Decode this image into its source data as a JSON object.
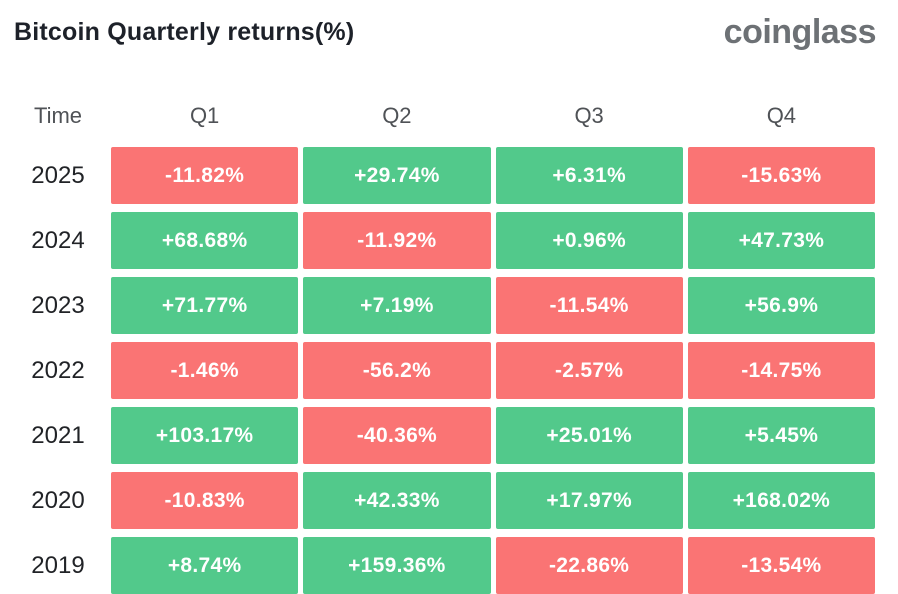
{
  "page": {
    "title": "Bitcoin Quarterly returns(%)",
    "brand": "coinglass"
  },
  "colors": {
    "positive": "#52c98b",
    "negative": "#fa7474",
    "cell_text": "#ffffff",
    "title_text": "#1d2129",
    "brand_text": "#6d7175",
    "header_text": "#4f5256",
    "year_text": "#212327",
    "background": "#ffffff"
  },
  "table": {
    "columns": [
      "Time",
      "Q1",
      "Q2",
      "Q3",
      "Q4"
    ],
    "rows": [
      {
        "year": "2025",
        "cells": [
          {
            "label": "-11.82%",
            "sign": "negative"
          },
          {
            "label": "+29.74%",
            "sign": "positive"
          },
          {
            "label": "+6.31%",
            "sign": "positive"
          },
          {
            "label": "-15.63%",
            "sign": "negative"
          }
        ]
      },
      {
        "year": "2024",
        "cells": [
          {
            "label": "+68.68%",
            "sign": "positive"
          },
          {
            "label": "-11.92%",
            "sign": "negative"
          },
          {
            "label": "+0.96%",
            "sign": "positive"
          },
          {
            "label": "+47.73%",
            "sign": "positive"
          }
        ]
      },
      {
        "year": "2023",
        "cells": [
          {
            "label": "+71.77%",
            "sign": "positive"
          },
          {
            "label": "+7.19%",
            "sign": "positive"
          },
          {
            "label": "-11.54%",
            "sign": "negative"
          },
          {
            "label": "+56.9%",
            "sign": "positive"
          }
        ]
      },
      {
        "year": "2022",
        "cells": [
          {
            "label": "-1.46%",
            "sign": "negative"
          },
          {
            "label": "-56.2%",
            "sign": "negative"
          },
          {
            "label": "-2.57%",
            "sign": "negative"
          },
          {
            "label": "-14.75%",
            "sign": "negative"
          }
        ]
      },
      {
        "year": "2021",
        "cells": [
          {
            "label": "+103.17%",
            "sign": "positive"
          },
          {
            "label": "-40.36%",
            "sign": "negative"
          },
          {
            "label": "+25.01%",
            "sign": "positive"
          },
          {
            "label": "+5.45%",
            "sign": "positive"
          }
        ]
      },
      {
        "year": "2020",
        "cells": [
          {
            "label": "-10.83%",
            "sign": "negative"
          },
          {
            "label": "+42.33%",
            "sign": "positive"
          },
          {
            "label": "+17.97%",
            "sign": "positive"
          },
          {
            "label": "+168.02%",
            "sign": "positive"
          }
        ]
      },
      {
        "year": "2019",
        "cells": [
          {
            "label": "+8.74%",
            "sign": "positive"
          },
          {
            "label": "+159.36%",
            "sign": "positive"
          },
          {
            "label": "-22.86%",
            "sign": "negative"
          },
          {
            "label": "-13.54%",
            "sign": "negative"
          }
        ]
      }
    ]
  },
  "chart_data": {
    "type": "heatmap",
    "title": "Bitcoin Quarterly returns(%)",
    "columns": [
      "Q1",
      "Q2",
      "Q3",
      "Q4"
    ],
    "years": [
      "2025",
      "2024",
      "2023",
      "2022",
      "2021",
      "2020",
      "2019"
    ],
    "values": [
      [
        -11.82,
        29.74,
        6.31,
        -15.63
      ],
      [
        68.68,
        -11.92,
        0.96,
        47.73
      ],
      [
        71.77,
        7.19,
        -11.54,
        56.9
      ],
      [
        -1.46,
        -56.2,
        -2.57,
        -14.75
      ],
      [
        103.17,
        -40.36,
        25.01,
        5.45
      ],
      [
        -10.83,
        42.33,
        17.97,
        168.02
      ],
      [
        8.74,
        159.36,
        -22.86,
        -13.54
      ]
    ],
    "value_unit": "%",
    "positive_color": "#52c98b",
    "negative_color": "#fa7474",
    "legend": "green = positive return, red = negative return"
  }
}
